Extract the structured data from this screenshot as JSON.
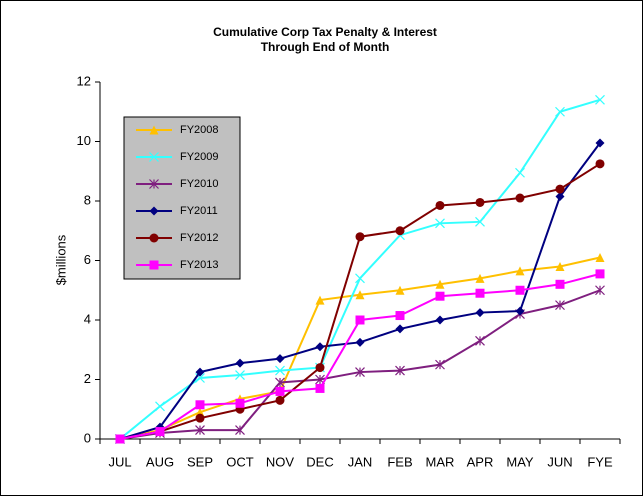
{
  "chart_data": {
    "type": "line",
    "title": [
      "Cumulative Corp Tax Penalty & Interest",
      "Through End of Month"
    ],
    "y_label": "$millions",
    "categories": [
      "JUL",
      "AUG",
      "SEP",
      "OCT",
      "NOV",
      "DEC",
      "JAN",
      "FEB",
      "MAR",
      "APR",
      "MAY",
      "JUN",
      "FYE"
    ],
    "ylim": [
      0,
      12
    ],
    "yticks": [
      0,
      2,
      4,
      6,
      8,
      10,
      12
    ],
    "series": [
      {
        "name": "FY2008",
        "color": "#ffc000",
        "marker": "triangle",
        "values": [
          0,
          0.3,
          0.9,
          1.35,
          1.6,
          4.67,
          4.85,
          5.0,
          5.2,
          5.4,
          5.65,
          5.8,
          6.1
        ]
      },
      {
        "name": "FY2009",
        "color": "#33ffff",
        "marker": "cross",
        "values": [
          0,
          1.1,
          2.05,
          2.15,
          2.3,
          2.4,
          5.4,
          6.85,
          7.25,
          7.3,
          8.95,
          11.0,
          11.4
        ]
      },
      {
        "name": "FY2010",
        "color": "#7f1f7f",
        "marker": "star",
        "values": [
          0,
          0.2,
          0.3,
          0.3,
          1.9,
          2.0,
          2.25,
          2.3,
          2.5,
          3.3,
          4.2,
          4.5,
          5.0
        ]
      },
      {
        "name": "FY2011",
        "color": "#000080",
        "marker": "diamond",
        "values": [
          0,
          0.4,
          2.25,
          2.55,
          2.7,
          3.1,
          3.25,
          3.7,
          4.0,
          4.25,
          4.3,
          8.15,
          9.95
        ]
      },
      {
        "name": "FY2012",
        "color": "#800000",
        "marker": "circle",
        "values": [
          0,
          0.25,
          0.7,
          1.0,
          1.3,
          2.4,
          6.8,
          7.0,
          7.85,
          7.95,
          8.1,
          8.4,
          9.25
        ]
      },
      {
        "name": "FY2013",
        "color": "#ff00ff",
        "marker": "square",
        "values": [
          0,
          0.25,
          1.15,
          1.2,
          1.6,
          1.7,
          4.0,
          4.15,
          4.8,
          4.9,
          5.0,
          5.2,
          5.55
        ]
      }
    ]
  }
}
